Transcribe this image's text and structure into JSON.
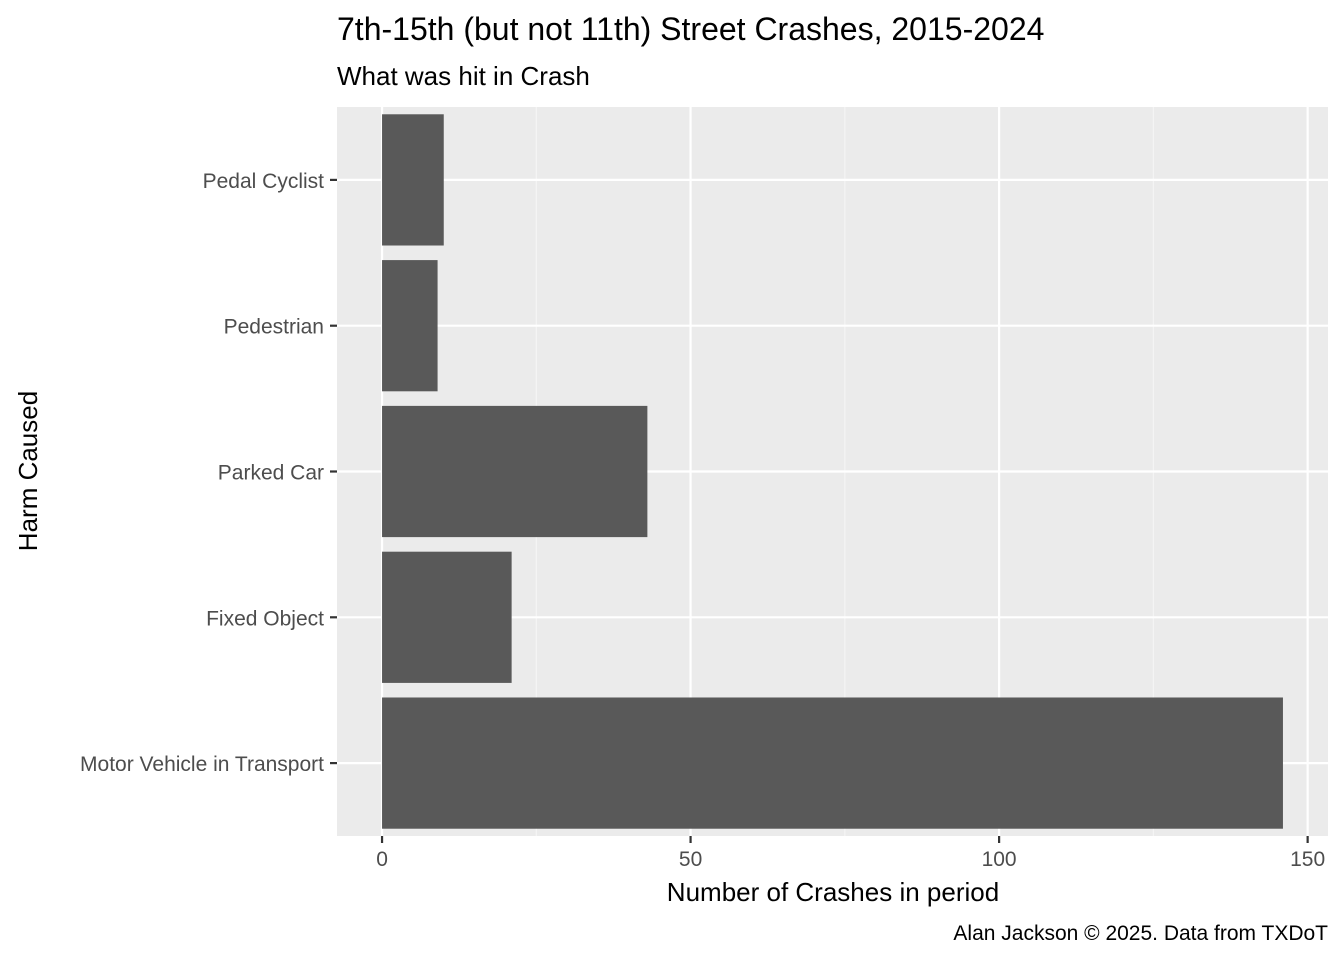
{
  "chart_data": {
    "type": "bar",
    "orientation": "horizontal",
    "title": "7th-15th (but not 11th) Street Crashes, 2015-2024",
    "subtitle": "What was hit in Crash",
    "xlabel": "Number of Crashes in period",
    "ylabel": "Harm Caused",
    "caption": "Alan Jackson © 2025. Data from TXDoT",
    "categories": [
      "Pedal Cyclist",
      "Pedestrian",
      "Parked Car",
      "Fixed Object",
      "Motor Vehicle in Transport"
    ],
    "values": [
      10,
      9,
      43,
      21,
      146
    ],
    "xlim": [
      -7.3,
      153.3
    ],
    "xticks": [
      0,
      50,
      100,
      150
    ],
    "xtick_labels": [
      "0",
      "50",
      "100",
      "150"
    ],
    "grid": true,
    "colors": {
      "bar": "#595959",
      "panel": "#ebebeb",
      "grid_major": "#ffffff",
      "grid_minor": "#f5f5f5",
      "tick": "#333333"
    }
  }
}
